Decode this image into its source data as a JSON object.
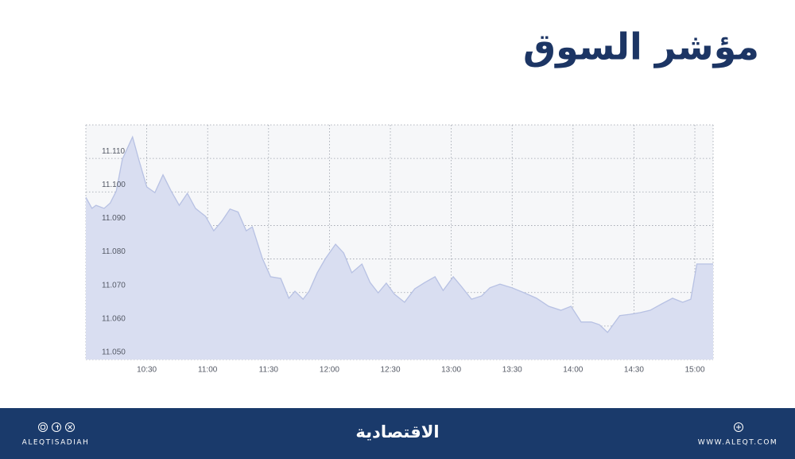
{
  "chart_data": {
    "type": "area",
    "title": "مؤشر السوق",
    "color": "#b7c1e3",
    "fill": "#d9def1",
    "grid": true,
    "xlim": [
      "10:00",
      "15:09"
    ],
    "xticks": [
      "10:30",
      "11:00",
      "11:30",
      "12:00",
      "12:30",
      "13:00",
      "13:30",
      "14:00",
      "14:30",
      "15:00"
    ],
    "ylim": [
      11.05,
      11.12
    ],
    "yticks": [
      {
        "value": 11.05,
        "label": "11.050"
      },
      {
        "value": 11.06,
        "label": "11.060"
      },
      {
        "value": 11.07,
        "label": "11.070"
      },
      {
        "value": 11.08,
        "label": "11.080"
      },
      {
        "value": 11.09,
        "label": "11.090"
      },
      {
        "value": 11.1,
        "label": "11.100"
      },
      {
        "value": 11.11,
        "label": "11.110"
      }
    ],
    "x": [
      "10:00",
      "10:03",
      "10:05",
      "10:09",
      "10:12",
      "10:15",
      "10:18",
      "10:23",
      "10:26",
      "10:30",
      "10:34",
      "10:38",
      "10:42",
      "10:46",
      "10:50",
      "10:54",
      "10:59",
      "11:03",
      "11:07",
      "11:11",
      "11:15",
      "11:19",
      "11:22",
      "11:27",
      "11:31",
      "11:36",
      "11:40",
      "11:43",
      "11:47",
      "11:50",
      "11:54",
      "11:58",
      "12:03",
      "12:07",
      "12:11",
      "12:16",
      "12:20",
      "12:24",
      "12:28",
      "12:32",
      "12:37",
      "12:42",
      "12:47",
      "12:52",
      "12:56",
      "13:01",
      "13:05",
      "13:10",
      "13:15",
      "13:19",
      "13:24",
      "13:30",
      "13:36",
      "13:42",
      "13:48",
      "13:54",
      "13:59",
      "14:04",
      "14:09",
      "14:13",
      "14:17",
      "14:23",
      "14:28",
      "14:33",
      "14:38",
      "14:43",
      "14:49",
      "14:54",
      "14:58",
      "15:01",
      "15:09"
    ],
    "values": [
      11.0984,
      11.0951,
      11.096,
      11.0951,
      11.0967,
      11.1003,
      11.1098,
      11.1164,
      11.1098,
      11.1015,
      11.0998,
      11.1051,
      11.1003,
      11.096,
      11.0996,
      11.0951,
      11.0927,
      11.0884,
      11.0913,
      11.0949,
      11.094,
      11.0884,
      11.0896,
      11.0801,
      11.0747,
      11.0742,
      11.0683,
      11.0704,
      11.068,
      11.0704,
      11.0759,
      11.0801,
      11.0844,
      11.0818,
      11.0759,
      11.0785,
      11.073,
      11.0699,
      11.0728,
      11.0695,
      11.0671,
      11.0711,
      11.073,
      11.0747,
      11.0706,
      11.0747,
      11.0718,
      11.068,
      11.069,
      11.0714,
      11.0725,
      11.0714,
      11.0699,
      11.0683,
      11.0659,
      11.0647,
      11.0659,
      11.0612,
      11.0612,
      11.0604,
      11.0581,
      11.0631,
      11.0635,
      11.064,
      11.0647,
      11.0664,
      11.0683,
      11.0671,
      11.068,
      11.0785,
      11.0785
    ]
  },
  "footer": {
    "handle": "ALEQTISADIAH",
    "brand": "الاقتصادية",
    "website": "WWW.ALEQT.COM"
  }
}
